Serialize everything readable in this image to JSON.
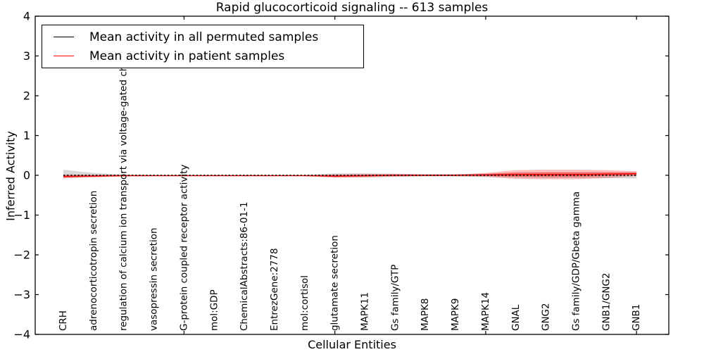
{
  "chart_data": {
    "type": "line",
    "title": "Rapid glucocorticoid signaling -- 613 samples",
    "xlabel": "Cellular Entities",
    "ylabel": "Inferred Activity",
    "ylim": [
      -4,
      4
    ],
    "yticks": [
      4,
      3,
      2,
      1,
      0,
      -1,
      -2,
      -3,
      -4
    ],
    "grid": false,
    "legend_position": "upper left",
    "categories": [
      "CRH",
      "adrenocorticotropin secretion",
      "regulation of calcium ion transport via voltage-gated channels",
      "vasopressin secretion",
      "G-protein coupled receptor activity",
      "mol:GDP",
      "ChemicalAbstracts:86-01-1",
      "EntrezGene:2778",
      "mol:cortisol",
      "glutamate secretion",
      "MAPK11",
      "Gs family/GTP",
      "MAPK8",
      "MAPK9",
      "MAPK14",
      "GNAL",
      "GNG2",
      "Gs family/GDP/Gbeta gamma",
      "GNB1/GNG2",
      "GNB1"
    ],
    "series": [
      {
        "name": "Mean activity in all permuted samples",
        "color": "#000000",
        "style": "dashed",
        "values": [
          0,
          0,
          0,
          0,
          0,
          0,
          0,
          0,
          0,
          0,
          0,
          0,
          0,
          0,
          0,
          0,
          0,
          0,
          0,
          0
        ]
      },
      {
        "name": "Mean activity in patient samples",
        "color": "#ff0000",
        "style": "solid",
        "values": [
          -0.03,
          -0.02,
          -0.01,
          -0.01,
          -0.01,
          -0.01,
          -0.01,
          -0.01,
          -0.01,
          -0.02,
          -0.01,
          0,
          0,
          0,
          0.01,
          0.02,
          0.02,
          0.02,
          0.03,
          0.04
        ]
      }
    ],
    "bands": [
      {
        "name": "permuted-range",
        "color": "#999999",
        "opacity": 0.38,
        "center": [
          0.04,
          0.01,
          0,
          0,
          0,
          0,
          0,
          0,
          0,
          0,
          0,
          0,
          0,
          0,
          0,
          0,
          0,
          0,
          0,
          0
        ],
        "half_width": [
          0.1,
          0.05,
          0.02,
          0.01,
          0.01,
          0.01,
          0.01,
          0.01,
          0.01,
          0.05,
          0.05,
          0.04,
          0.03,
          0.03,
          0.04,
          0.06,
          0.07,
          0.07,
          0.07,
          0.08
        ]
      },
      {
        "name": "patient-range-outer",
        "color": "#ff0000",
        "opacity": 0.25,
        "center": [
          -0.03,
          -0.02,
          -0.01,
          -0.01,
          -0.01,
          -0.01,
          -0.01,
          -0.01,
          -0.01,
          -0.02,
          -0.01,
          0,
          0,
          0,
          0.01,
          0.02,
          0.02,
          0.02,
          0.03,
          0.04
        ],
        "half_width": [
          0.05,
          0.03,
          0.02,
          0.01,
          0.01,
          0.01,
          0.01,
          0.01,
          0.01,
          0.04,
          0.04,
          0.03,
          0.02,
          0.02,
          0.05,
          0.11,
          0.12,
          0.12,
          0.1,
          0.06
        ]
      },
      {
        "name": "patient-range-inner",
        "color": "#ff0000",
        "opacity": 0.3,
        "center": [
          -0.03,
          -0.02,
          -0.01,
          -0.01,
          -0.01,
          -0.01,
          -0.01,
          -0.01,
          -0.01,
          -0.02,
          -0.01,
          0,
          0,
          0,
          0.01,
          0.02,
          0.02,
          0.02,
          0.03,
          0.04
        ],
        "half_width": [
          0.025,
          0.015,
          0.01,
          0.005,
          0.005,
          0.005,
          0.005,
          0.005,
          0.005,
          0.02,
          0.02,
          0.015,
          0.01,
          0.01,
          0.025,
          0.055,
          0.06,
          0.06,
          0.05,
          0.03
        ]
      }
    ]
  }
}
